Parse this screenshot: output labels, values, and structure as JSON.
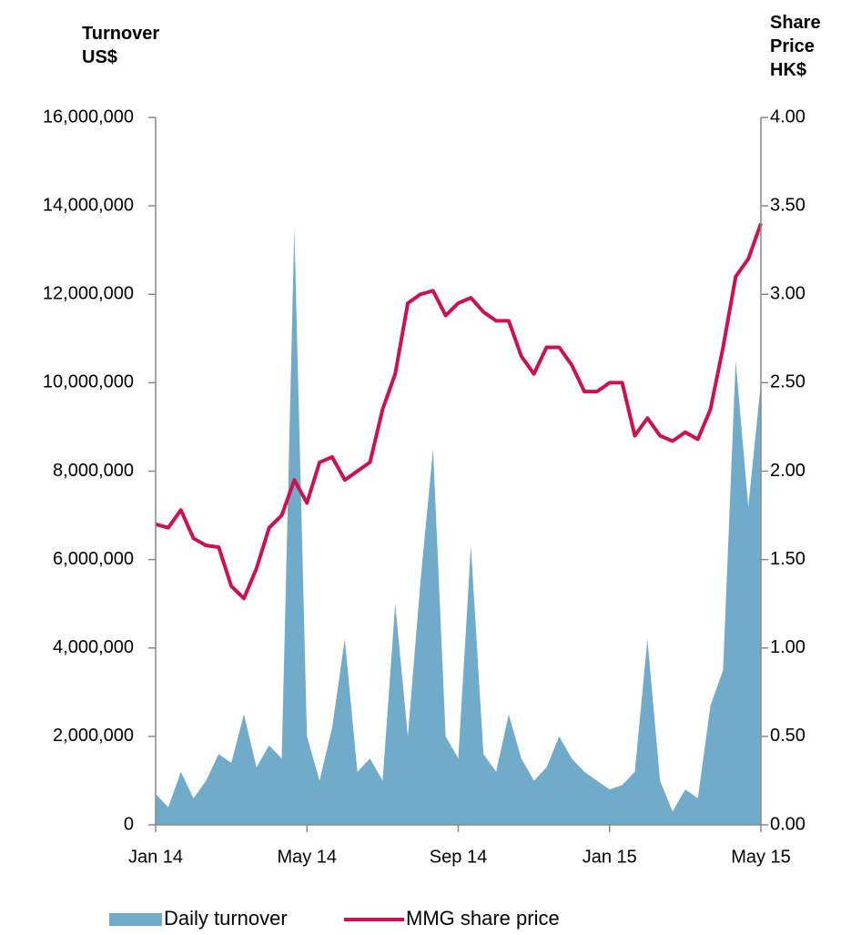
{
  "chart_data": {
    "type": "area_line_dual",
    "y_label": "Turnover US$",
    "y2_label": "Share Price HK$",
    "categories": [
      "Jan 14",
      null,
      null,
      null,
      null,
      null,
      null,
      null,
      null,
      null,
      null,
      null,
      "May 14",
      null,
      null,
      null,
      null,
      null,
      null,
      null,
      null,
      null,
      null,
      null,
      "Sep 14",
      null,
      null,
      null,
      null,
      null,
      null,
      null,
      null,
      null,
      null,
      null,
      "Jan 15",
      null,
      null,
      null,
      null,
      null,
      null,
      null,
      null,
      null,
      null,
      null,
      "May 15"
    ],
    "series": [
      {
        "name": "Daily turnover",
        "type": "area",
        "color": "#70acc9",
        "values": [
          700000,
          400000,
          1200000,
          600000,
          1000000,
          1600000,
          1400000,
          2500000,
          1300000,
          1800000,
          1500000,
          13500000,
          2000000,
          1000000,
          2200000,
          4200000,
          1200000,
          1500000,
          1000000,
          5000000,
          2000000,
          5500000,
          8500000,
          2000000,
          1500000,
          6300000,
          1600000,
          1200000,
          2500000,
          1500000,
          1000000,
          1300000,
          2000000,
          1500000,
          1200000,
          1000000,
          800000,
          900000,
          1200000,
          4200000,
          1000000,
          300000,
          800000,
          600000,
          2700000,
          3500000,
          10500000,
          7200000,
          10000000
        ]
      },
      {
        "name": "MMG share price",
        "type": "line",
        "axis": "y2",
        "color": "#d0104c",
        "values": [
          1.7,
          1.68,
          1.78,
          1.62,
          1.58,
          1.57,
          1.35,
          1.28,
          1.45,
          1.68,
          1.75,
          1.95,
          1.82,
          2.05,
          2.08,
          1.95,
          2.0,
          2.05,
          2.35,
          2.55,
          2.95,
          3.0,
          3.02,
          2.88,
          2.95,
          2.98,
          2.9,
          2.85,
          2.85,
          2.65,
          2.55,
          2.7,
          2.7,
          2.6,
          2.45,
          2.45,
          2.5,
          2.5,
          2.2,
          2.3,
          2.2,
          2.17,
          2.22,
          2.18,
          2.35,
          2.7,
          3.1,
          3.2,
          3.4
        ]
      }
    ],
    "ylim": [
      0,
      16000000
    ],
    "yticks": [
      0,
      {
        "value": 2000000,
        "label": "2,000,000"
      },
      {
        "value": 4000000,
        "label": "4,000,000"
      },
      {
        "value": 6000000,
        "label": "6,000,000"
      },
      {
        "value": 8000000,
        "label": "8,000,000"
      },
      {
        "value": 10000000,
        "label": "10,000,000"
      },
      {
        "value": 12000000,
        "label": "12,000,000"
      },
      {
        "value": 14000000,
        "label": "14,000,000"
      },
      {
        "value": 16000000,
        "label": "16,000,000"
      }
    ],
    "y2lim": [
      0,
      4
    ],
    "y2ticks": [
      {
        "value": 0,
        "label": "0.00"
      },
      {
        "value": 0.5,
        "label": "0.50"
      },
      {
        "value": 1,
        "label": "1.00"
      },
      {
        "value": 1.5,
        "label": "1.50"
      },
      {
        "value": 2,
        "label": "2.00"
      },
      {
        "value": 2.5,
        "label": "2.50"
      },
      {
        "value": 3,
        "label": "3.00"
      },
      {
        "value": 3.5,
        "label": "3.50"
      },
      {
        "value": 4,
        "label": "4.00"
      }
    ],
    "legend": "bottom"
  }
}
